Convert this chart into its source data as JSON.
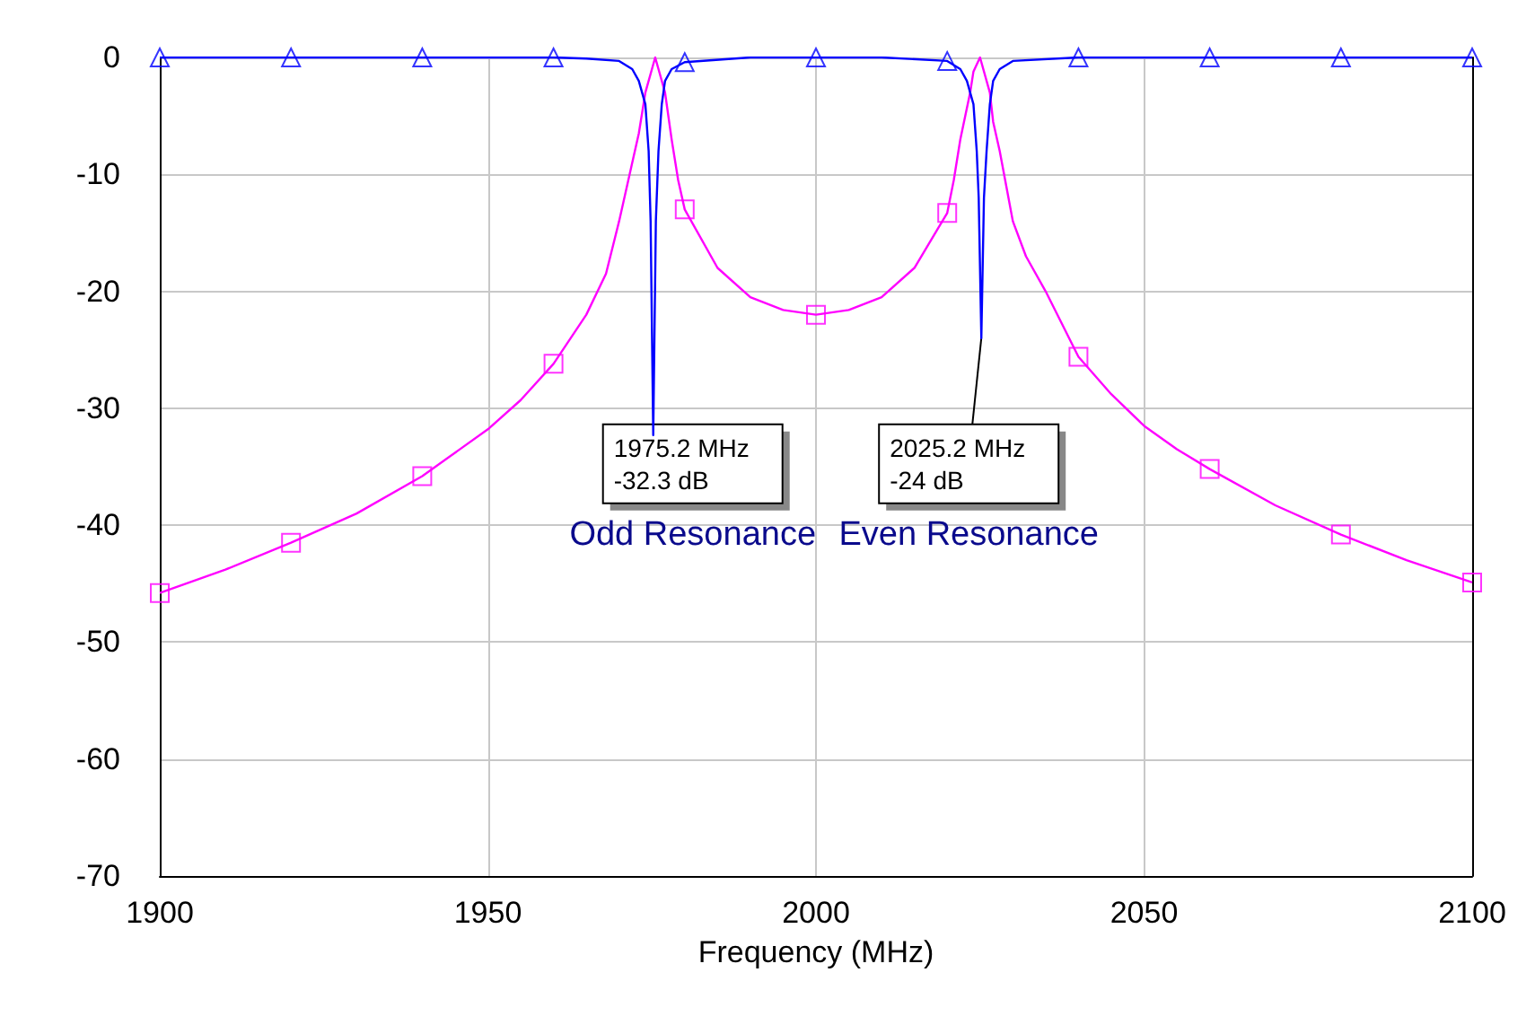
{
  "chart_data": {
    "type": "line",
    "xlabel": "Frequency (MHz)",
    "xlim": [
      1900,
      2100
    ],
    "xticks": [
      1900,
      1950,
      2000,
      2050,
      2100
    ],
    "ylim": [
      -70,
      0
    ],
    "yticks": [
      -70,
      -60,
      -50,
      -40,
      -30,
      -20,
      -10,
      0
    ],
    "grid": true,
    "series": [
      {
        "color": "#ff00ff",
        "x": [
          1900,
          1910,
          1920,
          1930,
          1940,
          1950,
          1955,
          1960,
          1965,
          1968,
          1970,
          1972,
          1973,
          1974,
          1975.5,
          1976,
          1977,
          1978,
          1979,
          1980,
          1985,
          1990,
          1995,
          2000,
          2005,
          2010,
          2015,
          2020,
          2021,
          2022,
          2023.5,
          2024,
          2025,
          2026.5,
          2027,
          2028,
          2029,
          2030,
          2032,
          2035,
          2040,
          2045,
          2050,
          2055,
          2060,
          2070,
          2080,
          2090,
          2100
        ],
        "values": [
          -45.8,
          -43.8,
          -41.5,
          -39,
          -35.8,
          -31.8,
          -29.3,
          -26.2,
          -22,
          -18.5,
          -14,
          -9,
          -6.5,
          -3,
          0,
          -1,
          -3,
          -7,
          -10.5,
          -13,
          -18,
          -20.5,
          -21.6,
          -22,
          -21.6,
          -20.5,
          -18,
          -13.3,
          -10.5,
          -7,
          -3,
          -1.2,
          0,
          -3,
          -5.5,
          -8,
          -11,
          -14,
          -17,
          -20,
          -25.6,
          -28.8,
          -31.5,
          -33.5,
          -35.2,
          -38.3,
          -40.8,
          -43,
          -44.9
        ]
      },
      {
        "color": "#0000ff",
        "x": [
          1900,
          1920,
          1940,
          1960,
          1965,
          1970,
          1972,
          1973,
          1974,
          1974.5,
          1974.8,
          1975.2,
          1975.6,
          1976,
          1976.5,
          1977,
          1978,
          1980,
          1990,
          2000,
          2010,
          2020,
          2022,
          2023,
          2024,
          2024.5,
          2024.8,
          2025.2,
          2025.6,
          2026,
          2026.5,
          2027,
          2028,
          2030,
          2040,
          2060,
          2080,
          2100
        ],
        "values": [
          0,
          0,
          0,
          0,
          -0.1,
          -0.3,
          -1,
          -2,
          -4,
          -8,
          -14,
          -32.3,
          -14,
          -8,
          -4,
          -2,
          -1,
          -0.4,
          0,
          0,
          0,
          -0.3,
          -1,
          -2,
          -4,
          -8,
          -12,
          -24,
          -12,
          -8,
          -4,
          -2,
          -1,
          -0.3,
          0,
          0,
          0,
          0
        ]
      },
      {
        "type": "scatter",
        "color": "#ff00ff",
        "marker": "square",
        "x": [
          1900,
          1920,
          1940,
          1960,
          1980,
          2000,
          2020,
          2040,
          2060,
          2080,
          2100
        ],
        "values": [
          -45.8,
          -41.5,
          -35.8,
          -26.2,
          -13,
          -22,
          -13.3,
          -25.6,
          -35.2,
          -40.8,
          -44.9
        ]
      },
      {
        "type": "scatter",
        "color": "#0000ff",
        "marker": "triangle",
        "x": [
          1900,
          1920,
          1940,
          1960,
          1980,
          2000,
          2020,
          2040,
          2060,
          2080,
          2100
        ],
        "values": [
          0,
          0,
          0,
          0,
          -0.4,
          0,
          -0.3,
          0,
          0,
          0,
          0
        ]
      }
    ],
    "annotations": [
      {
        "text": "1975.2 MHz\n-32.3 dB",
        "x": 1975.2,
        "y": -32.3
      },
      {
        "text": "2025.2 MHz\n-24 dB",
        "x": 2025.2,
        "y": -24
      },
      "Odd Resonance",
      "Even Resonance"
    ]
  }
}
